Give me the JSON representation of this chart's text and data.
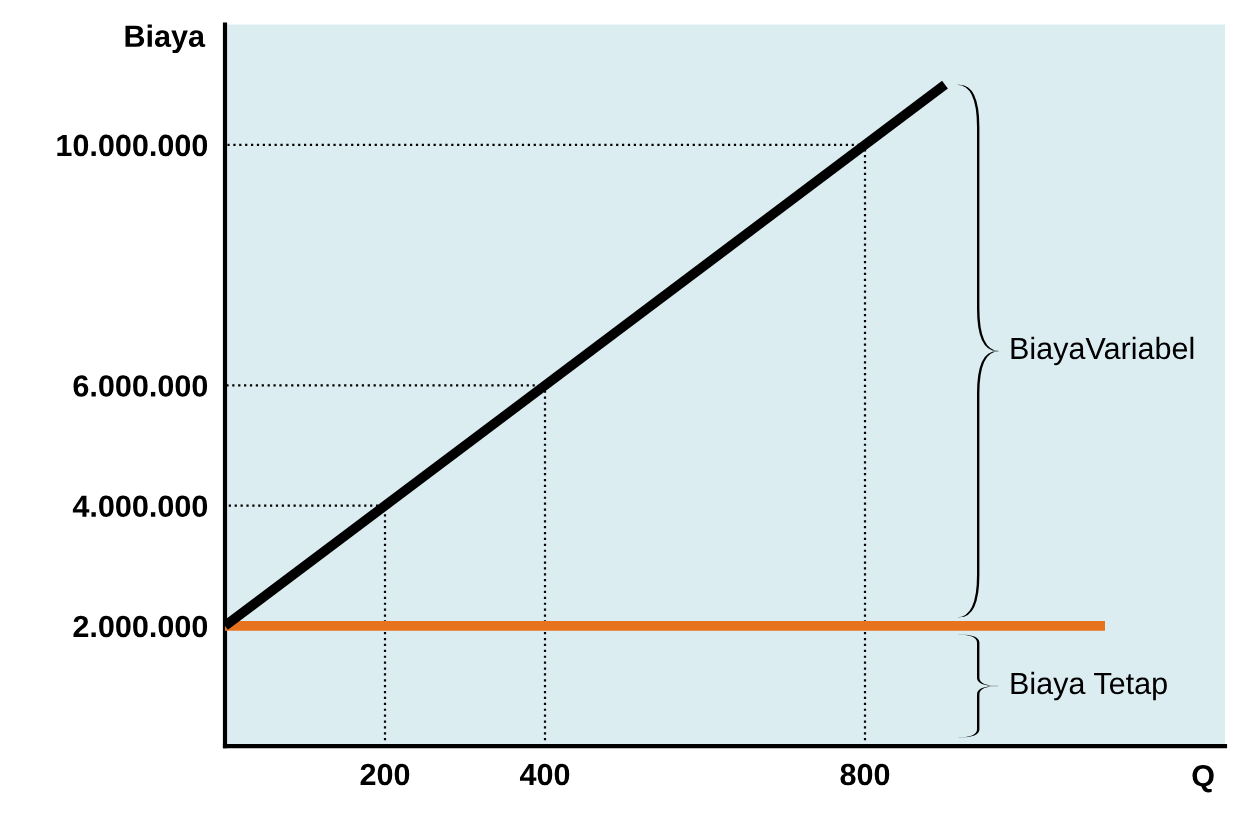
{
  "chart_data": {
    "type": "line",
    "xlabel": "Q",
    "ylabel": "Biaya",
    "xlim": [
      0,
      1250
    ],
    "ylim": [
      0,
      12000000
    ],
    "xticks": [
      200,
      400,
      800
    ],
    "yticks": [
      {
        "value": 2000000,
        "label": "2.000.000"
      },
      {
        "value": 4000000,
        "label": "4.000.000"
      },
      {
        "value": 6000000,
        "label": "6.000.000"
      },
      {
        "value": 10000000,
        "label": "10.000.000"
      }
    ],
    "series": [
      {
        "color": "#e8731f",
        "x": [
          0,
          1100
        ],
        "values": [
          2000000,
          2000000
        ]
      },
      {
        "color": "#000000",
        "x": [
          0,
          900
        ],
        "values": [
          2000000,
          11000000
        ]
      },
      {
        "color": "#000000",
        "line_style": "dotted",
        "x": [
          200,
          200,
          0
        ],
        "values": [
          0,
          4000000,
          4000000
        ]
      },
      {
        "color": "#000000",
        "line_style": "dotted",
        "x": [
          400,
          400,
          0
        ],
        "values": [
          0,
          6000000,
          6000000
        ]
      },
      {
        "color": "#000000",
        "line_style": "dotted",
        "x": [
          800,
          800,
          0
        ],
        "values": [
          0,
          10000000,
          10000000
        ]
      }
    ],
    "annotations": [
      "BiayaVariabel",
      "Biaya Tetap"
    ],
    "grid": false
  }
}
